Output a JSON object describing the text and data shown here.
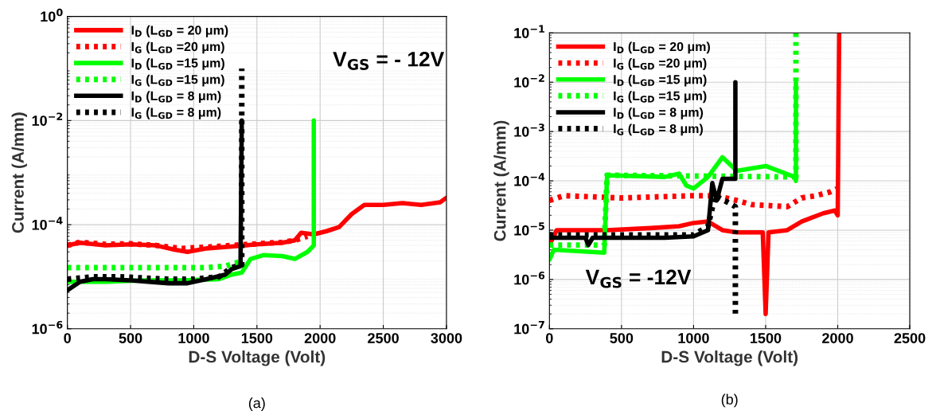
{
  "chart_data": [
    {
      "type": "line",
      "xlabel": "D-S Voltage (Volt)",
      "ylabel": "Current (A/mm)",
      "log": "y",
      "grid": true,
      "legend": "top left",
      "xlim": [
        0,
        3000
      ],
      "xticks": [
        0,
        500,
        1000,
        1500,
        2000,
        2500,
        3000
      ],
      "ylim": [
        1e-06,
        1
      ],
      "yticks": [
        {
          "value": 1e-06,
          "label": "10$^{−6}$"
        },
        {
          "value": 0.0001,
          "label": "10$^{−4}$"
        },
        {
          "value": 0.01,
          "label": "10$^{−2}$"
        },
        {
          "value": 1,
          "label": "10$^{0}$"
        }
      ],
      "annotations": [
        "V$_{GS}$ = - 12V",
        "(a)"
      ],
      "series": [
        {
          "name": "I$_{D}$ (L$_{GD}$ = 20 μm)",
          "color": "#ff0000",
          "line_style": "solid",
          "x": [
            0,
            100,
            300,
            500,
            700,
            850,
            950,
            1100,
            1300,
            1500,
            1700,
            1800,
            1850,
            1950,
            2050,
            2150,
            2250,
            2350,
            2500,
            2650,
            2800,
            2950,
            3000
          ],
          "values": [
            4e-05,
            4.5e-05,
            4e-05,
            4.2e-05,
            4e-05,
            3.3e-05,
            3e-05,
            3.5e-05,
            3.8e-05,
            4.2e-05,
            4.5e-05,
            5e-05,
            7e-05,
            6.5e-05,
            7.5e-05,
            9e-05,
            0.00016,
            0.00024,
            0.00024,
            0.00026,
            0.00024,
            0.00027,
            0.00033
          ]
        },
        {
          "name": "I$_{G}$ (L$_{GD}$ =20 μm)",
          "color": "#ff0000",
          "line_style": "dotted",
          "x": [
            0,
            100,
            300,
            500,
            700,
            900,
            1100,
            1300,
            1500,
            1700,
            1800,
            1900
          ],
          "values": [
            4e-05,
            4.6e-05,
            4.2e-05,
            4.3e-05,
            4e-05,
            3.5e-05,
            3.7e-05,
            4e-05,
            4.3e-05,
            4.6e-05,
            5e-05,
            6e-05
          ]
        },
        {
          "name": "I$_{D}$ (L$_{GD}$ =15 μm)",
          "color": "#00ff00",
          "line_style": "solid",
          "x": [
            0,
            300,
            600,
            900,
            1200,
            1300,
            1380,
            1450,
            1550,
            1700,
            1800,
            1900,
            1950,
            1950
          ],
          "values": [
            8e-06,
            8e-06,
            8.5e-06,
            8.5e-06,
            9e-06,
            1.1e-05,
            1.2e-05,
            2.2e-05,
            2.6e-05,
            2.5e-05,
            2.2e-05,
            3e-05,
            4e-05,
            0.01
          ]
        },
        {
          "name": "I$_{G}$ (L$_{GD}$ =15 μm)",
          "color": "#00ff00",
          "line_style": "dotted",
          "x": [
            0,
            400,
            800,
            1100,
            1250,
            1350,
            1380
          ],
          "values": [
            1.5e-05,
            1.5e-05,
            1.5e-05,
            1.5e-05,
            1.6e-05,
            1.9e-05,
            2e-05
          ]
        },
        {
          "name": "I$_{D}$ (L$_{GD}$ = 8 μm)",
          "color": "#000000",
          "line_style": "solid",
          "x": [
            0,
            100,
            200,
            300,
            500,
            800,
            950,
            1100,
            1250,
            1300,
            1370,
            1380
          ],
          "values": [
            5.5e-06,
            8e-06,
            9e-06,
            9e-06,
            8.5e-06,
            7.5e-06,
            7.5e-06,
            9e-06,
            1.1e-05,
            1.4e-05,
            1.6e-05,
            0.01
          ]
        },
        {
          "name": "I$_{G}$ (L$_{GD}$ = 8 μm)",
          "color": "#000000",
          "line_style": "dotted",
          "x": [
            0,
            200,
            400,
            600,
            800,
            1000,
            1200,
            1300,
            1380,
            1380
          ],
          "values": [
            9e-06,
            1e-05,
            1e-05,
            9.5e-06,
            9e-06,
            9e-06,
            1e-05,
            1.5e-05,
            1.7e-05,
            0.1
          ]
        }
      ]
    },
    {
      "type": "line",
      "xlabel": "D-S Voltage (Volt)",
      "ylabel": "Current (A/mm)",
      "log": "y",
      "grid": true,
      "legend": "top left",
      "xlim": [
        0,
        2500
      ],
      "xticks": [
        0,
        500,
        1000,
        1500,
        2000,
        2500
      ],
      "ylim": [
        1e-07,
        0.1
      ],
      "yticks": [
        {
          "value": 1e-07,
          "label": "10$^{−7}$"
        },
        {
          "value": 1e-06,
          "label": "10$^{−6}$"
        },
        {
          "value": 1e-05,
          "label": "10$^{−5}$"
        },
        {
          "value": 0.0001,
          "label": "10$^{−4}$"
        },
        {
          "value": 0.001,
          "label": "10$^{−3}$"
        },
        {
          "value": 0.01,
          "label": "10$^{−2}$"
        },
        {
          "value": 0.1,
          "label": "10$^{−1}$"
        }
      ],
      "annotations": [
        "V$_{GS}$ = -12V",
        "(b)"
      ],
      "series": [
        {
          "name": "I$_{D}$ (L$_{GD}$ = 20 μm)",
          "color": "#ff0000",
          "line_style": "solid",
          "x": [
            0,
            50,
            400,
            700,
            900,
            1000,
            1100,
            1200,
            1300,
            1400,
            1480,
            1500,
            1520,
            1650,
            1750,
            1900,
            1980,
            2000,
            2010
          ],
          "values": [
            5e-06,
            1e-05,
            1e-05,
            1.1e-05,
            1.2e-05,
            1.4e-05,
            1.5e-05,
            1e-05,
            9e-06,
            9e-06,
            9e-06,
            2e-07,
            9e-06,
            1e-05,
            1.5e-05,
            2.2e-05,
            2.5e-05,
            2e-05,
            0.1
          ]
        },
        {
          "name": "I$_{G}$ (L$_{GD}$ =20 μm)",
          "color": "#ff0000",
          "line_style": "dotted",
          "x": [
            0,
            100,
            500,
            1000,
            1150,
            1300,
            1400,
            1650,
            1750,
            1850,
            1950,
            2000
          ],
          "values": [
            4e-05,
            5e-05,
            4.5e-05,
            5e-05,
            5e-05,
            4e-05,
            3.3e-05,
            3e-05,
            4.5e-05,
            5e-05,
            6e-05,
            7e-05
          ]
        },
        {
          "name": "I$_{D}$ (L$_{GD}$ =15 μm)",
          "color": "#00ff00",
          "line_style": "solid",
          "x": [
            0,
            30,
            380,
            400,
            800,
            900,
            950,
            1000,
            1100,
            1200,
            1300,
            1500,
            1700,
            1710,
            1710
          ],
          "values": [
            2.5e-06,
            4e-06,
            3.5e-06,
            0.00013,
            0.00012,
            0.00014,
            8e-05,
            7e-05,
            0.00012,
            0.0003,
            0.00016,
            0.0002,
            0.00012,
            0.0001,
            0.01
          ]
        },
        {
          "name": "I$_{G}$ (L$_{GD}$ =15 μm)",
          "color": "#00ff00",
          "line_style": "dotted",
          "x": [
            0,
            380,
            400,
            1700,
            1710,
            1710
          ],
          "values": [
            5e-06,
            5e-06,
            0.00013,
            0.00012,
            0.0001,
            0.1
          ]
        },
        {
          "name": "I$_{D}$ (L$_{GD}$ = 8 μm)",
          "color": "#000000",
          "line_style": "solid",
          "x": [
            0,
            250,
            270,
            300,
            800,
            1000,
            1100,
            1130,
            1160,
            1200,
            1290,
            1290
          ],
          "values": [
            7e-06,
            7e-06,
            5e-06,
            7e-06,
            7e-06,
            7.5e-06,
            1e-05,
            9e-05,
            4e-05,
            0.00011,
            0.00011,
            0.01
          ]
        },
        {
          "name": "I$_{G}$ (L$_{GD}$ = 8 μm)",
          "color": "#000000",
          "line_style": "dotted",
          "x": [
            0,
            500,
            1000,
            1100,
            1150,
            1250,
            1290,
            1290
          ],
          "values": [
            8e-06,
            8e-06,
            8e-06,
            1.2e-05,
            5e-05,
            3.5e-05,
            3e-05,
            2e-07
          ]
        }
      ]
    }
  ]
}
